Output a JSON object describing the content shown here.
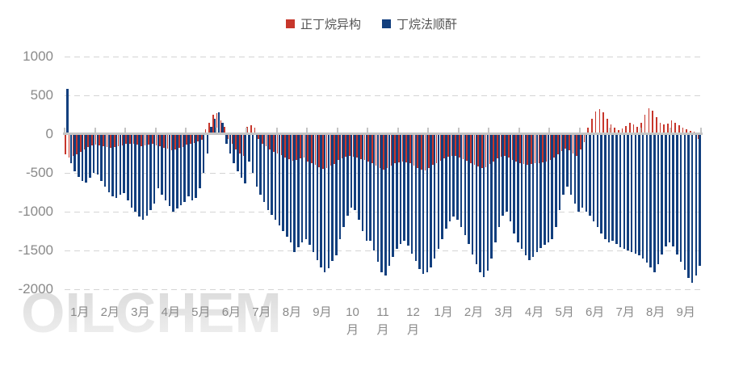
{
  "watermark": "OILCHEM",
  "legend": {
    "items": [
      {
        "label": "正丁烷异构",
        "color": "#C7362B"
      },
      {
        "label": "丁烷法顺酐",
        "color": "#123F7E"
      }
    ]
  },
  "colors": {
    "red_series": "#C7362B",
    "blue_series": "#123F7E",
    "axis_line": "#C5C5C5",
    "gridline": "#D4D4D4",
    "axis_label": "#8A8A8A",
    "legend_text": "#545454",
    "watermark": "#E2E2E2"
  },
  "chart_data": {
    "type": "bar",
    "title": "",
    "xlabel": "",
    "ylabel": "",
    "grid": "dashed-horizontal",
    "legend_position": "top-center",
    "points_per_month": 8,
    "x_axis": {
      "labels": [
        "1月",
        "2月",
        "3月",
        "4月",
        "5月",
        "6月",
        "7月",
        "8月",
        "9月",
        "10\n月",
        "11\n月",
        "12\n月",
        "1月",
        "2月",
        "3月",
        "4月",
        "5月",
        "6月",
        "7月",
        "8月",
        "9月"
      ]
    },
    "y_axis": {
      "min": -2000,
      "max": 1000,
      "step": 500,
      "ticks": [
        1000,
        500,
        0,
        -500,
        -1000,
        -1500,
        -2000
      ]
    },
    "series": [
      {
        "name": "正丁烷异构",
        "color": "#C7362B",
        "values": [
          -260,
          -300,
          -280,
          -260,
          -230,
          -200,
          -170,
          -150,
          -140,
          -150,
          -160,
          -170,
          -180,
          -170,
          -160,
          -150,
          -130,
          -120,
          -130,
          -140,
          -160,
          -150,
          -140,
          -130,
          -150,
          -160,
          -180,
          -190,
          -210,
          -200,
          -180,
          -170,
          -140,
          -130,
          -110,
          -90,
          -70,
          60,
          150,
          250,
          270,
          180,
          90,
          -60,
          -130,
          -200,
          -250,
          -280,
          90,
          110,
          80,
          -60,
          -120,
          -160,
          -200,
          -230,
          -250,
          -270,
          -300,
          -320,
          -340,
          -330,
          -310,
          -300,
          -350,
          -380,
          -400,
          -430,
          -450,
          -440,
          -410,
          -390,
          -330,
          -310,
          -290,
          -280,
          -290,
          -300,
          -320,
          -330,
          -350,
          -380,
          -410,
          -440,
          -460,
          -440,
          -410,
          -380,
          -360,
          -350,
          -360,
          -380,
          -410,
          -440,
          -460,
          -470,
          -440,
          -400,
          -370,
          -340,
          -310,
          -290,
          -280,
          -280,
          -300,
          -320,
          -340,
          -370,
          -400,
          -420,
          -440,
          -430,
          -390,
          -350,
          -310,
          -290,
          -280,
          -300,
          -330,
          -350,
          -370,
          -390,
          -400,
          -390,
          -380,
          -370,
          -360,
          -350,
          -330,
          -300,
          -260,
          -220,
          -190,
          -210,
          -250,
          -280,
          -200,
          -100,
          80,
          200,
          290,
          320,
          280,
          200,
          120,
          80,
          50,
          70,
          100,
          150,
          120,
          90,
          150,
          250,
          330,
          300,
          220,
          150,
          120,
          140,
          180,
          150,
          110,
          80,
          60,
          40,
          30,
          -60
        ]
      },
      {
        "name": "丁烷法顺酐",
        "color": "#123F7E",
        "values": [
          580,
          -380,
          -480,
          -550,
          -600,
          -620,
          -560,
          -500,
          -520,
          -600,
          -680,
          -750,
          -800,
          -820,
          -780,
          -760,
          -850,
          -950,
          -1000,
          -1060,
          -1100,
          -1050,
          -980,
          -900,
          -700,
          -780,
          -850,
          -930,
          -1000,
          -960,
          -920,
          -880,
          -800,
          -850,
          -820,
          -700,
          -500,
          -250,
          90,
          200,
          280,
          150,
          -120,
          -250,
          -380,
          -480,
          -560,
          -640,
          -350,
          -500,
          -680,
          -780,
          -880,
          -980,
          -1040,
          -1100,
          -1180,
          -1250,
          -1320,
          -1400,
          -1520,
          -1460,
          -1400,
          -1350,
          -1430,
          -1520,
          -1620,
          -1720,
          -1780,
          -1730,
          -1640,
          -1560,
          -1350,
          -1200,
          -1050,
          -950,
          -980,
          -1100,
          -1250,
          -1380,
          -1380,
          -1500,
          -1650,
          -1780,
          -1820,
          -1700,
          -1580,
          -1480,
          -1420,
          -1380,
          -1440,
          -1540,
          -1640,
          -1740,
          -1800,
          -1780,
          -1720,
          -1600,
          -1480,
          -1350,
          -1220,
          -1120,
          -1060,
          -1100,
          -1200,
          -1300,
          -1420,
          -1550,
          -1680,
          -1780,
          -1840,
          -1760,
          -1600,
          -1400,
          -1200,
          -1050,
          -1000,
          -1120,
          -1280,
          -1400,
          -1480,
          -1560,
          -1620,
          -1580,
          -1520,
          -1470,
          -1430,
          -1400,
          -1350,
          -1200,
          -980,
          -780,
          -680,
          -780,
          -900,
          -1000,
          -950,
          -1000,
          -1050,
          -1120,
          -1200,
          -1280,
          -1350,
          -1400,
          -1380,
          -1420,
          -1460,
          -1480,
          -1500,
          -1520,
          -1540,
          -1560,
          -1600,
          -1660,
          -1720,
          -1780,
          -1680,
          -1550,
          -1450,
          -1400,
          -1450,
          -1550,
          -1650,
          -1750,
          -1850,
          -1920,
          -1820,
          -1700
        ]
      }
    ]
  }
}
